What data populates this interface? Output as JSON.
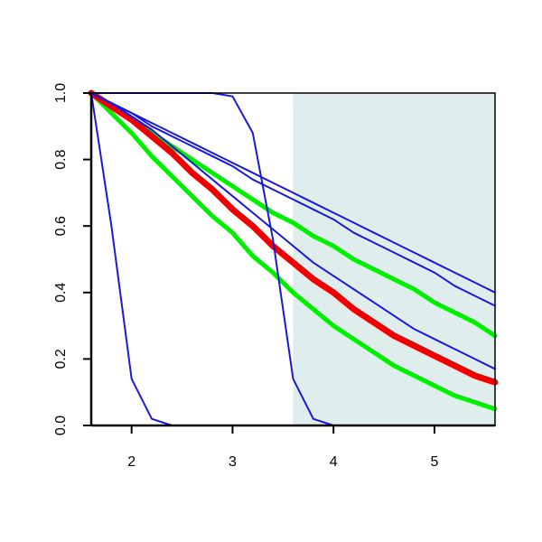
{
  "chart_data": {
    "type": "line",
    "x": [
      1.6,
      1.8,
      2.0,
      2.2,
      2.4,
      2.6,
      2.8,
      3.0,
      3.2,
      3.4,
      3.6,
      3.8,
      4.0,
      4.2,
      4.4,
      4.6,
      4.8,
      5.0,
      5.2,
      5.4,
      5.6
    ],
    "xlim": [
      1.6,
      5.6
    ],
    "xticks": [
      2,
      3,
      4,
      5
    ],
    "ylim": [
      0,
      1
    ],
    "yticks": [
      {
        "value": 0,
        "label": "0.0"
      },
      0.2,
      0.4,
      0.6,
      0.8,
      {
        "value": 1,
        "label": "1.0"
      }
    ],
    "shaded_x": [
      3.6,
      5.6
    ],
    "shade_color": "#e0eded",
    "series": [
      {
        "color": "#00ee00",
        "width": 5,
        "values": [
          1,
          0.94,
          0.88,
          0.81,
          0.75,
          0.69,
          0.63,
          0.58,
          0.51,
          0.46,
          0.4,
          0.35,
          0.3,
          0.26,
          0.22,
          0.18,
          0.15,
          0.12,
          0.09,
          0.07,
          0.05
        ]
      },
      {
        "color": "#00ee00",
        "width": 5,
        "values": [
          1,
          0.96,
          0.92,
          0.88,
          0.84,
          0.8,
          0.76,
          0.72,
          0.68,
          0.64,
          0.61,
          0.57,
          0.54,
          0.5,
          0.47,
          0.44,
          0.41,
          0.37,
          0.34,
          0.31,
          0.27
        ]
      },
      {
        "color": "#ee0000",
        "width": 7,
        "values": [
          1,
          0.96,
          0.92,
          0.87,
          0.82,
          0.76,
          0.71,
          0.65,
          0.6,
          0.54,
          0.49,
          0.44,
          0.4,
          0.35,
          0.31,
          0.27,
          0.24,
          0.21,
          0.18,
          0.15,
          0.13
        ]
      },
      {
        "color": "#1a1ad6",
        "width": 2,
        "values": [
          1,
          0.6,
          0.14,
          0.02,
          0,
          0,
          0,
          0,
          0,
          0,
          0,
          0,
          0,
          0,
          0,
          0,
          0,
          0,
          0,
          0,
          0
        ]
      },
      {
        "color": "#1a1ad6",
        "width": 2,
        "values": [
          1,
          1,
          1,
          1,
          1,
          1,
          1,
          0.99,
          0.88,
          0.56,
          0.14,
          0.02,
          0,
          0,
          0,
          0,
          0,
          0,
          0,
          0,
          0
        ]
      },
      {
        "color": "#1a1ad6",
        "width": 2,
        "values": [
          1,
          0.97,
          0.93,
          0.89,
          0.84,
          0.79,
          0.74,
          0.69,
          0.64,
          0.59,
          0.54,
          0.49,
          0.45,
          0.41,
          0.37,
          0.33,
          0.29,
          0.26,
          0.23,
          0.2,
          0.17
        ]
      },
      {
        "color": "#1a1ad6",
        "width": 2,
        "values": [
          1,
          0.97,
          0.94,
          0.9,
          0.87,
          0.84,
          0.81,
          0.78,
          0.74,
          0.71,
          0.68,
          0.65,
          0.62,
          0.58,
          0.55,
          0.52,
          0.49,
          0.46,
          0.42,
          0.39,
          0.36
        ]
      },
      {
        "color": "#1a1ad6",
        "width": 2,
        "values": [
          1,
          0.97,
          0.94,
          0.91,
          0.88,
          0.85,
          0.82,
          0.79,
          0.76,
          0.73,
          0.7,
          0.67,
          0.64,
          0.61,
          0.58,
          0.55,
          0.52,
          0.49,
          0.46,
          0.43,
          0.4
        ]
      }
    ]
  }
}
